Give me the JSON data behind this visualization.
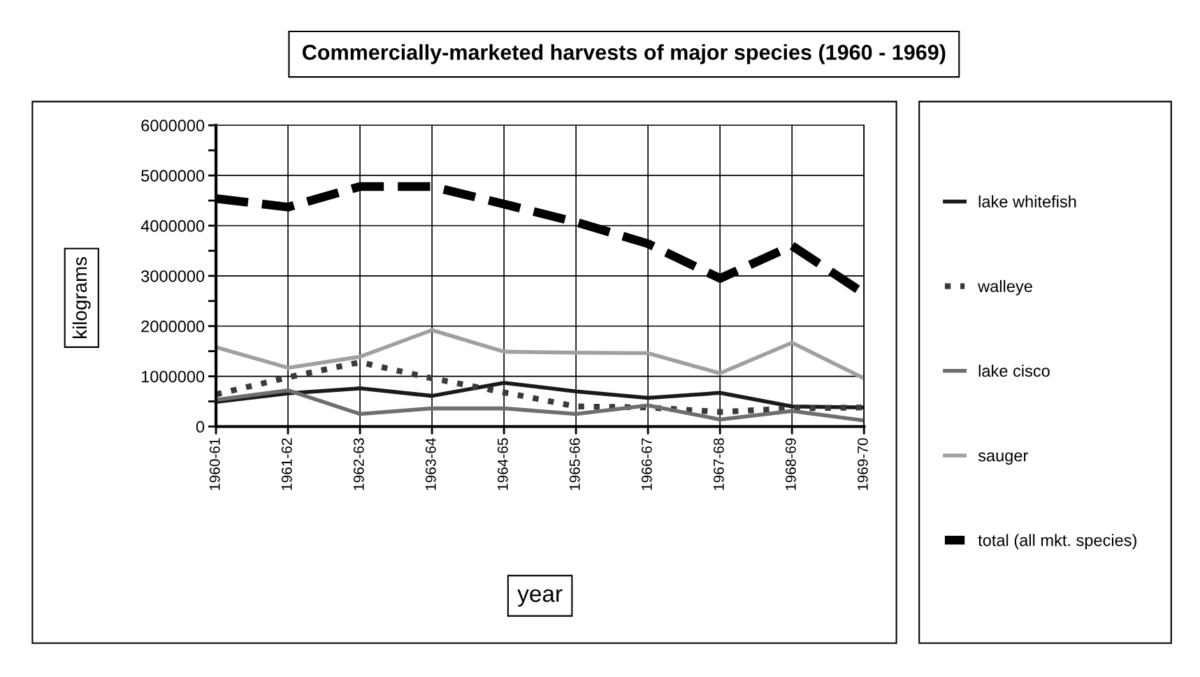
{
  "chart_data": {
    "type": "line",
    "title": "Commercially-marketed harvests of major species (1960 - 1969)",
    "xlabel": "year",
    "ylabel": "kilograms",
    "categories": [
      "1960-61",
      "1961-62",
      "1962-63",
      "1963-64",
      "1964-65",
      "1965-66",
      "1966-67",
      "1967-68",
      "1968-69",
      "1969-70"
    ],
    "series": [
      {
        "name": "lake whitefish",
        "color": "#1a1a1a",
        "line_style": "solid",
        "values": [
          490000,
          660000,
          760000,
          610000,
          870000,
          700000,
          570000,
          670000,
          400000,
          380000
        ]
      },
      {
        "name": "walleye",
        "color": "#3a3a3a",
        "line_style": "dotted",
        "values": [
          640000,
          980000,
          1280000,
          960000,
          680000,
          400000,
          380000,
          290000,
          360000,
          380000
        ]
      },
      {
        "name": "lake cisco",
        "color": "#6e6e6e",
        "line_style": "solid",
        "values": [
          530000,
          720000,
          250000,
          360000,
          360000,
          250000,
          420000,
          140000,
          310000,
          120000
        ]
      },
      {
        "name": "sauger",
        "color": "#a0a0a0",
        "line_style": "solid",
        "values": [
          1580000,
          1170000,
          1390000,
          1920000,
          1490000,
          1470000,
          1460000,
          1060000,
          1670000,
          960000
        ]
      },
      {
        "name": "total (all mkt. species)",
        "color": "#000000",
        "line_style": "dashed",
        "values": [
          4540000,
          4370000,
          4780000,
          4780000,
          4430000,
          4070000,
          3640000,
          2950000,
          3600000,
          2650000
        ]
      }
    ],
    "ylim": [
      0,
      6000000
    ],
    "yticks": [
      0,
      {
        "value": 500000,
        "label": null
      },
      1000000,
      {
        "value": 1500000,
        "label": null
      },
      2000000,
      {
        "value": 2500000,
        "label": null
      },
      3000000,
      {
        "value": 3500000,
        "label": null
      },
      4000000,
      {
        "value": 4500000,
        "label": null
      },
      5000000,
      {
        "value": 5500000,
        "label": null
      },
      6000000
    ],
    "grid": true,
    "legend": "right",
    "marker": "none"
  }
}
